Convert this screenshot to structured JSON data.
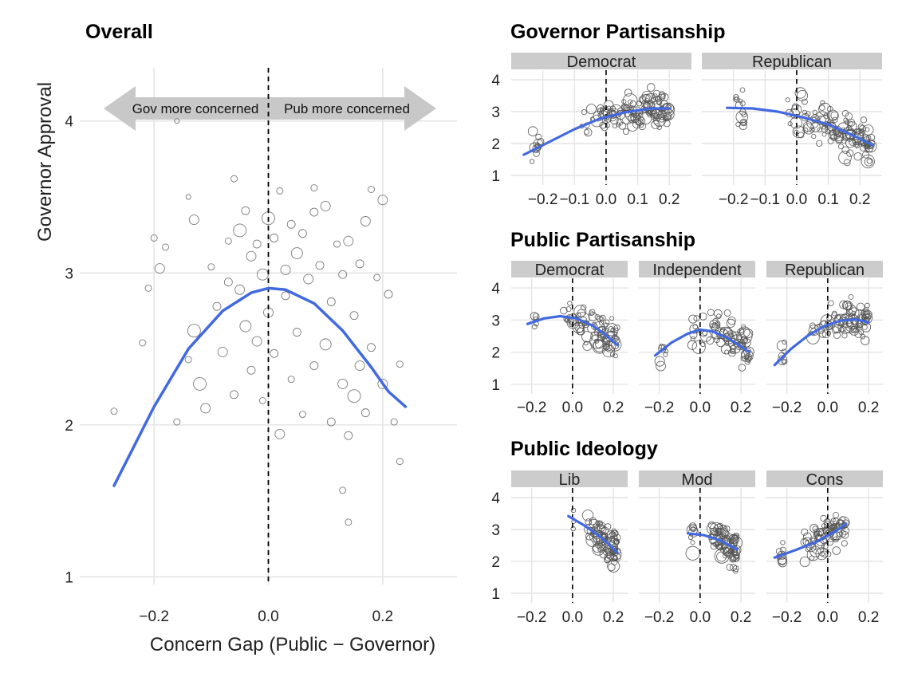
{
  "chart_data": [
    {
      "type": "scatter",
      "title": "Overall",
      "xlabel": "Concern Gap (Public − Governor)",
      "ylabel": "Governor Approval",
      "xlim": [
        -0.33,
        0.33
      ],
      "ylim": [
        0.95,
        4.35
      ],
      "x_ticks": [
        -0.2,
        0.0,
        0.2
      ],
      "x_tick_labels": [
        "−0.2",
        "0.0",
        "0.2"
      ],
      "y_ticks": [
        1,
        2,
        3,
        4
      ],
      "y_tick_labels": [
        "1",
        "2",
        "3",
        "4"
      ],
      "grid": true,
      "reference_line": {
        "x": 0,
        "style": "dashed"
      },
      "annotations": {
        "left": "Gov more concerned",
        "right": "Pub more concerned"
      },
      "fit_line": {
        "color": "#4169E1",
        "x": [
          -0.27,
          -0.2,
          -0.14,
          -0.08,
          -0.03,
          0.0,
          0.03,
          0.08,
          0.13,
          0.18,
          0.21,
          0.24
        ],
        "y": [
          1.6,
          2.12,
          2.5,
          2.75,
          2.87,
          2.9,
          2.89,
          2.8,
          2.62,
          2.38,
          2.22,
          2.12
        ]
      },
      "points": [
        {
          "x": -0.27,
          "y": 2.09,
          "s": 4
        },
        {
          "x": -0.22,
          "y": 2.54,
          "s": 4
        },
        {
          "x": -0.21,
          "y": 2.9,
          "s": 4
        },
        {
          "x": -0.19,
          "y": 3.03,
          "s": 6
        },
        {
          "x": -0.2,
          "y": 3.23,
          "s": 4
        },
        {
          "x": -0.18,
          "y": 3.17,
          "s": 4
        },
        {
          "x": -0.16,
          "y": 2.02,
          "s": 4
        },
        {
          "x": -0.14,
          "y": 2.43,
          "s": 4
        },
        {
          "x": -0.13,
          "y": 3.35,
          "s": 6
        },
        {
          "x": -0.13,
          "y": 2.62,
          "s": 8
        },
        {
          "x": -0.12,
          "y": 2.27,
          "s": 8
        },
        {
          "x": -0.11,
          "y": 2.11,
          "s": 6
        },
        {
          "x": -0.1,
          "y": 3.04,
          "s": 4
        },
        {
          "x": -0.16,
          "y": 4.0,
          "s": 3
        },
        {
          "x": -0.14,
          "y": 3.5,
          "s": 3
        },
        {
          "x": -0.09,
          "y": 2.78,
          "s": 5
        },
        {
          "x": -0.08,
          "y": 2.48,
          "s": 6
        },
        {
          "x": -0.07,
          "y": 2.94,
          "s": 5
        },
        {
          "x": -0.07,
          "y": 3.21,
          "s": 4
        },
        {
          "x": -0.06,
          "y": 2.2,
          "s": 5
        },
        {
          "x": -0.05,
          "y": 3.28,
          "s": 8
        },
        {
          "x": -0.05,
          "y": 2.89,
          "s": 6
        },
        {
          "x": -0.04,
          "y": 3.41,
          "s": 5
        },
        {
          "x": -0.04,
          "y": 2.65,
          "s": 7
        },
        {
          "x": -0.03,
          "y": 3.11,
          "s": 6
        },
        {
          "x": -0.03,
          "y": 2.36,
          "s": 5
        },
        {
          "x": -0.02,
          "y": 3.19,
          "s": 5
        },
        {
          "x": -0.02,
          "y": 2.55,
          "s": 6
        },
        {
          "x": -0.01,
          "y": 2.99,
          "s": 7
        },
        {
          "x": -0.01,
          "y": 2.16,
          "s": 4
        },
        {
          "x": 0.0,
          "y": 3.36,
          "s": 8
        },
        {
          "x": 0.0,
          "y": 2.74,
          "s": 6
        },
        {
          "x": 0.01,
          "y": 3.23,
          "s": 5
        },
        {
          "x": 0.01,
          "y": 2.47,
          "s": 5
        },
        {
          "x": 0.02,
          "y": 1.94,
          "s": 6
        },
        {
          "x": 0.03,
          "y": 3.02,
          "s": 6
        },
        {
          "x": 0.03,
          "y": 2.85,
          "s": 5
        },
        {
          "x": 0.04,
          "y": 3.32,
          "s": 5
        },
        {
          "x": 0.04,
          "y": 2.3,
          "s": 4
        },
        {
          "x": 0.05,
          "y": 3.13,
          "s": 7
        },
        {
          "x": 0.05,
          "y": 2.61,
          "s": 5
        },
        {
          "x": 0.06,
          "y": 3.26,
          "s": 5
        },
        {
          "x": 0.06,
          "y": 2.07,
          "s": 4
        },
        {
          "x": 0.07,
          "y": 2.96,
          "s": 6
        },
        {
          "x": 0.08,
          "y": 3.4,
          "s": 5
        },
        {
          "x": 0.08,
          "y": 2.39,
          "s": 5
        },
        {
          "x": 0.09,
          "y": 3.05,
          "s": 5
        },
        {
          "x": 0.1,
          "y": 2.53,
          "s": 7
        },
        {
          "x": 0.1,
          "y": 3.44,
          "s": 6
        },
        {
          "x": 0.11,
          "y": 2.02,
          "s": 5
        },
        {
          "x": 0.11,
          "y": 2.81,
          "s": 5
        },
        {
          "x": 0.12,
          "y": 3.19,
          "s": 4
        },
        {
          "x": 0.13,
          "y": 2.27,
          "s": 6
        },
        {
          "x": 0.13,
          "y": 2.99,
          "s": 5
        },
        {
          "x": 0.14,
          "y": 1.93,
          "s": 5
        },
        {
          "x": 0.14,
          "y": 3.21,
          "s": 6
        },
        {
          "x": 0.15,
          "y": 2.19,
          "s": 8
        },
        {
          "x": 0.15,
          "y": 2.72,
          "s": 5
        },
        {
          "x": 0.16,
          "y": 2.39,
          "s": 6
        },
        {
          "x": 0.16,
          "y": 3.06,
          "s": 5
        },
        {
          "x": 0.17,
          "y": 2.08,
          "s": 5
        },
        {
          "x": 0.17,
          "y": 3.34,
          "s": 6
        },
        {
          "x": 0.18,
          "y": 2.51,
          "s": 5
        },
        {
          "x": 0.19,
          "y": 2.97,
          "s": 4
        },
        {
          "x": 0.2,
          "y": 2.27,
          "s": 6
        },
        {
          "x": 0.21,
          "y": 2.86,
          "s": 5
        },
        {
          "x": 0.22,
          "y": 2.02,
          "s": 4
        },
        {
          "x": 0.23,
          "y": 2.4,
          "s": 4
        },
        {
          "x": 0.13,
          "y": 1.57,
          "s": 4
        },
        {
          "x": 0.14,
          "y": 1.36,
          "s": 4
        },
        {
          "x": 0.23,
          "y": 1.76,
          "s": 4
        },
        {
          "x": 0.2,
          "y": 3.48,
          "s": 6
        },
        {
          "x": 0.18,
          "y": 3.55,
          "s": 4
        },
        {
          "x": -0.06,
          "y": 3.62,
          "s": 4
        },
        {
          "x": 0.08,
          "y": 3.56,
          "s": 4
        },
        {
          "x": 0.02,
          "y": 3.54,
          "s": 4
        }
      ]
    },
    {
      "type": "scatter",
      "title": "Governor Partisanship",
      "panels": [
        {
          "strip": "Democrat",
          "fit_line": {
            "x": [
              -0.26,
              -0.18,
              -0.1,
              -0.02,
              0.06,
              0.14,
              0.2
            ],
            "y": [
              1.65,
              2.05,
              2.45,
              2.78,
              2.98,
              3.1,
              3.1
            ]
          }
        },
        {
          "strip": "Republican",
          "fit_line": {
            "x": [
              -0.22,
              -0.14,
              -0.06,
              0.02,
              0.1,
              0.18,
              0.24
            ],
            "y": [
              3.12,
              3.1,
              3.0,
              2.82,
              2.6,
              2.25,
              1.95
            ]
          }
        }
      ],
      "xlim": [
        -0.3,
        0.27
      ],
      "ylim": [
        0.7,
        4.3
      ],
      "x_ticks": [
        -0.2,
        -0.1,
        0.0,
        0.1,
        0.2
      ],
      "x_tick_labels": [
        "−0.2",
        "−0.1",
        "0.0",
        "0.1",
        "0.2"
      ],
      "y_ticks": [
        1,
        2,
        3,
        4
      ],
      "y_tick_labels": [
        "1",
        "2",
        "3",
        "4"
      ],
      "grid": true
    },
    {
      "type": "scatter",
      "title": "Public Partisanship",
      "panels": [
        {
          "strip": "Democrat",
          "fit_line": {
            "x": [
              -0.22,
              -0.14,
              -0.06,
              0.02,
              0.1,
              0.16,
              0.22
            ],
            "y": [
              2.88,
              3.05,
              3.12,
              3.05,
              2.82,
              2.55,
              2.22
            ]
          }
        },
        {
          "strip": "Independent",
          "fit_line": {
            "x": [
              -0.22,
              -0.14,
              -0.06,
              0.0,
              0.06,
              0.14,
              0.24
            ],
            "y": [
              1.9,
              2.3,
              2.58,
              2.7,
              2.65,
              2.42,
              2.0
            ]
          }
        },
        {
          "strip": "Republican",
          "fit_line": {
            "x": [
              -0.26,
              -0.18,
              -0.1,
              -0.02,
              0.06,
              0.14,
              0.2
            ],
            "y": [
              1.6,
              2.1,
              2.5,
              2.8,
              2.98,
              3.02,
              2.92
            ]
          }
        }
      ],
      "xlim": [
        -0.3,
        0.27
      ],
      "ylim": [
        0.7,
        4.3
      ],
      "x_ticks": [
        -0.2,
        0.0,
        0.2
      ],
      "x_tick_labels": [
        "−0.2",
        "0.0",
        "0.2"
      ],
      "y_ticks": [
        1,
        2,
        3,
        4
      ],
      "y_tick_labels": [
        "1",
        "2",
        "3",
        "4"
      ],
      "grid": true
    },
    {
      "type": "scatter",
      "title": "Public Ideology",
      "panels": [
        {
          "strip": "Lib",
          "fit_line": {
            "x": [
              -0.02,
              0.06,
              0.14,
              0.22
            ],
            "y": [
              3.42,
              3.12,
              2.75,
              2.28
            ]
          }
        },
        {
          "strip": "Mod",
          "fit_line": {
            "x": [
              -0.06,
              0.02,
              0.1,
              0.18
            ],
            "y": [
              2.88,
              2.82,
              2.65,
              2.38
            ]
          }
        },
        {
          "strip": "Cons",
          "fit_line": {
            "x": [
              -0.26,
              -0.16,
              -0.06,
              0.04,
              0.09
            ],
            "y": [
              2.12,
              2.35,
              2.6,
              2.95,
              3.18
            ]
          }
        }
      ],
      "xlim": [
        -0.3,
        0.27
      ],
      "ylim": [
        0.7,
        4.3
      ],
      "x_ticks": [
        -0.2,
        0.0,
        0.2
      ],
      "x_tick_labels": [
        "−0.2",
        "0.0",
        "0.2"
      ],
      "y_ticks": [
        1,
        2,
        3,
        4
      ],
      "y_tick_labels": [
        "1",
        "2",
        "3",
        "4"
      ],
      "grid": true
    }
  ]
}
